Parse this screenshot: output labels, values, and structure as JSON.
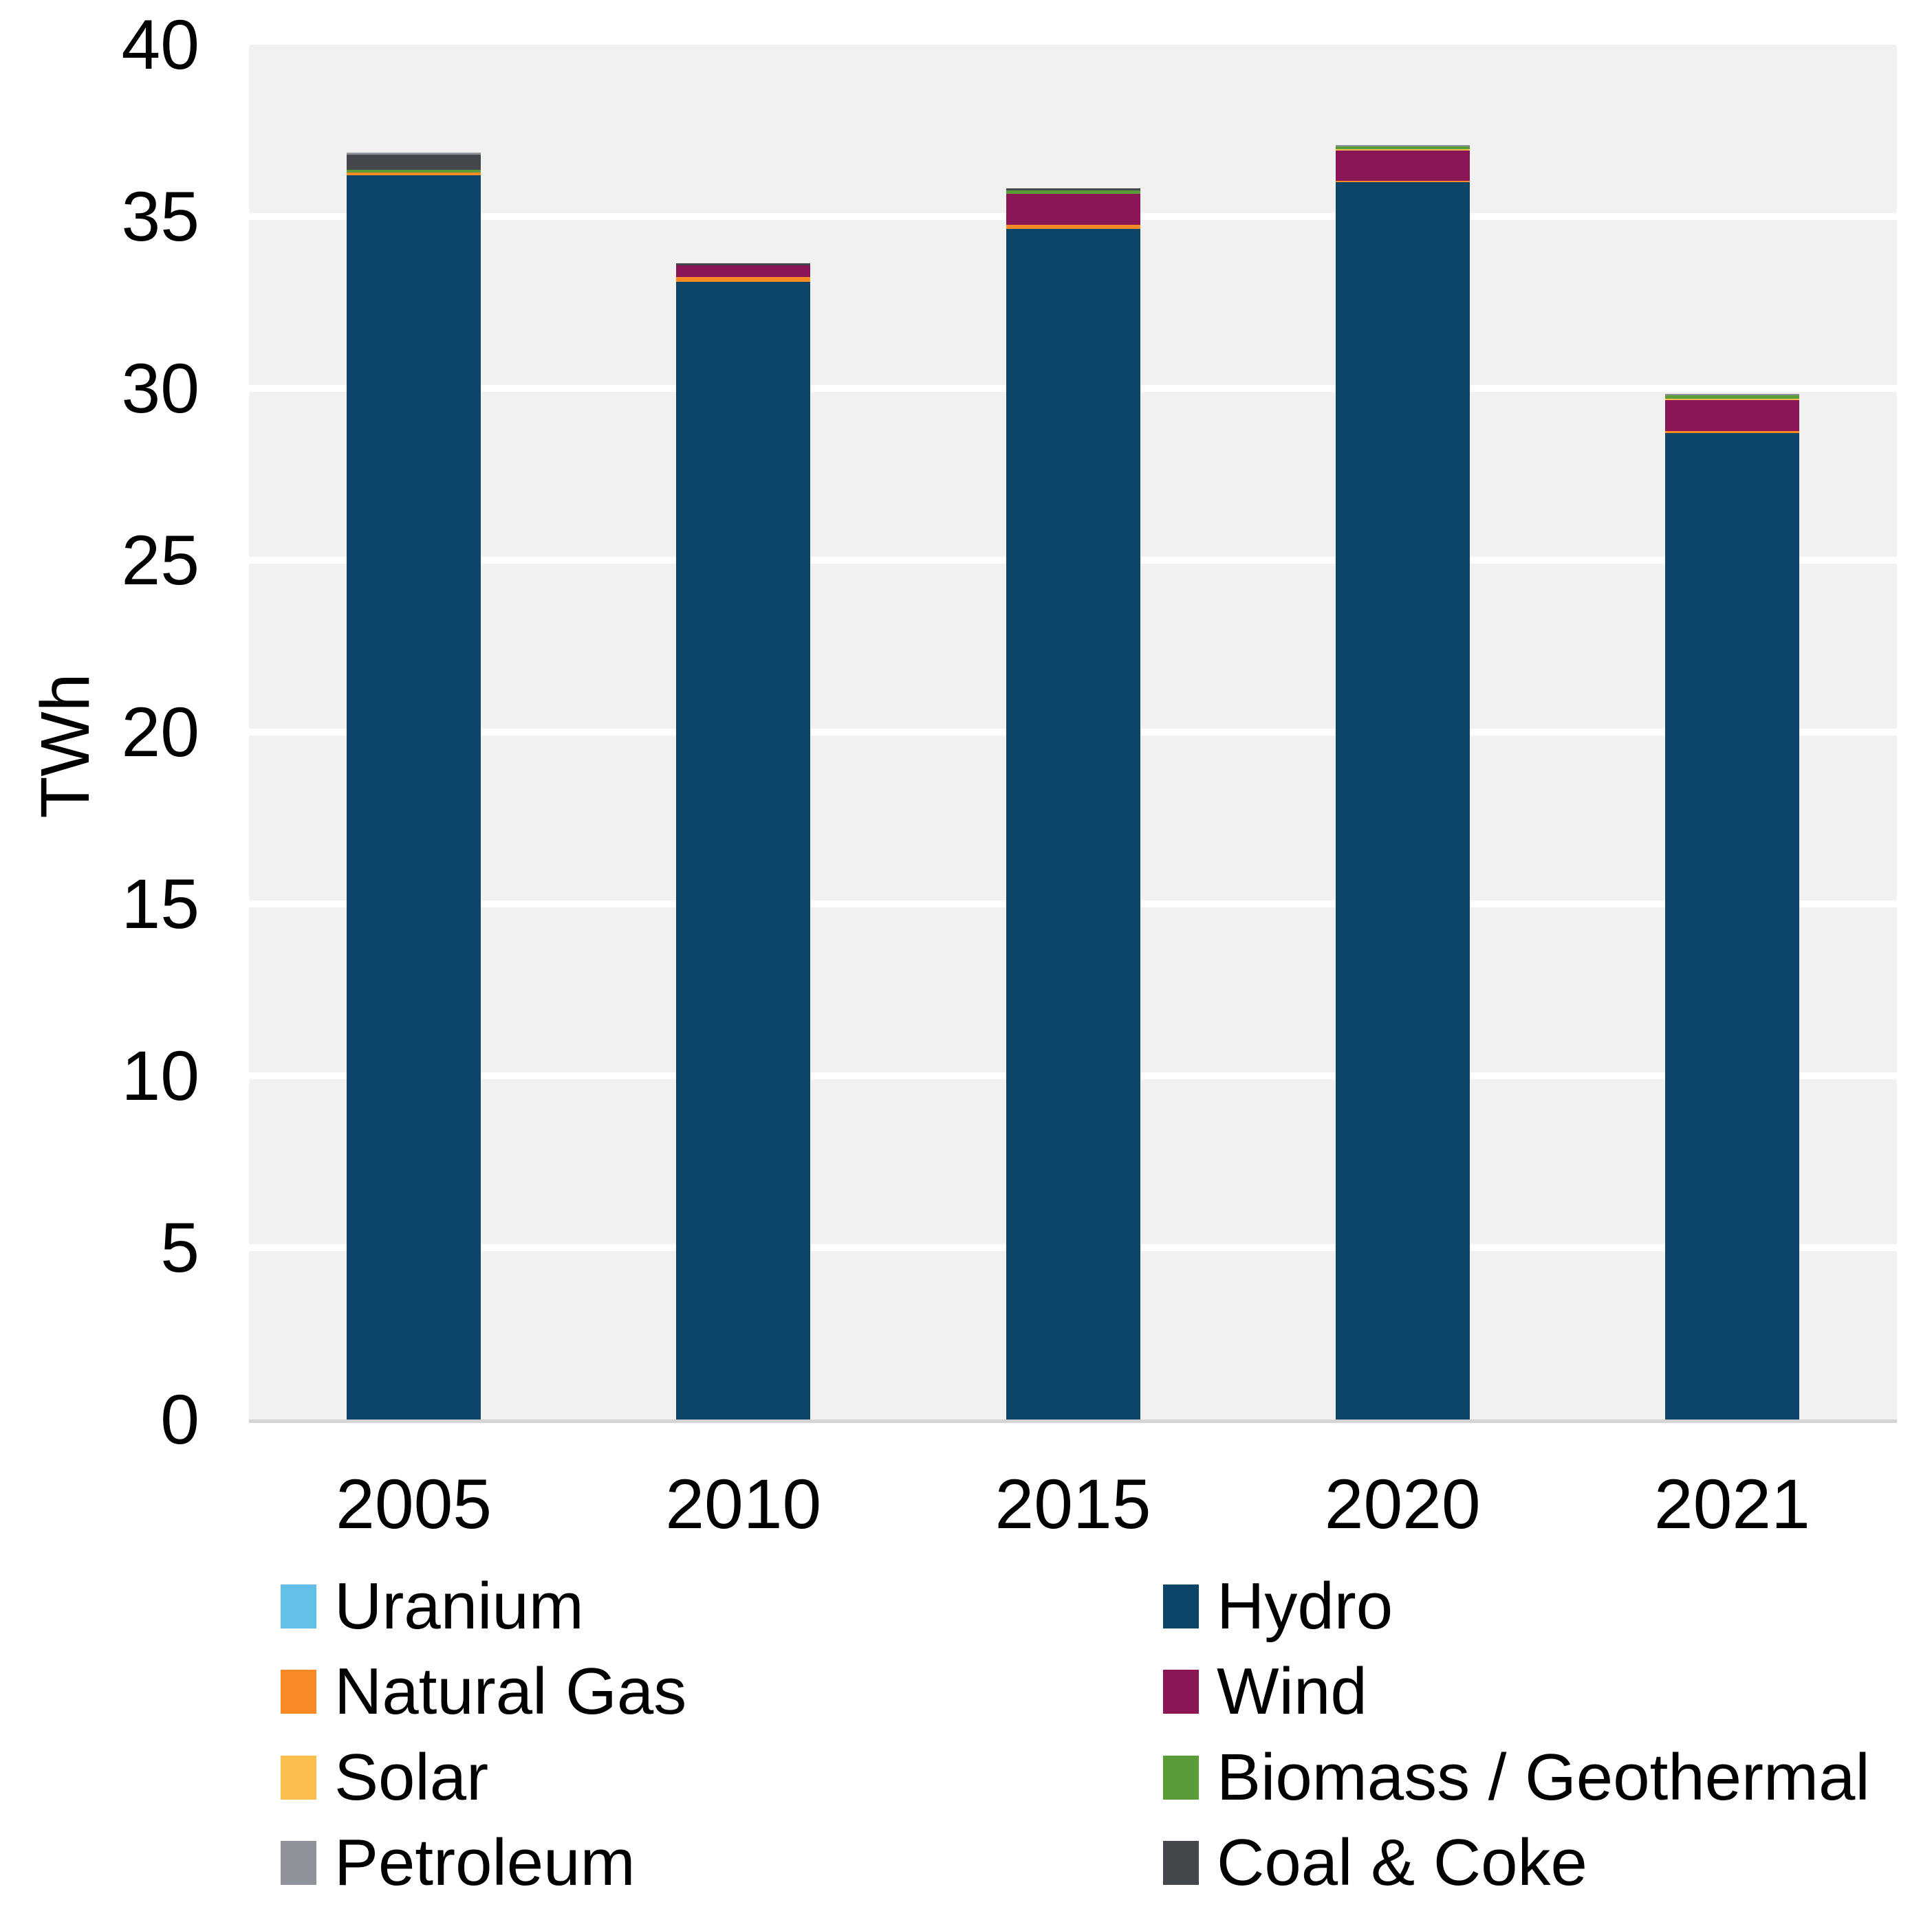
{
  "chart_data": {
    "type": "bar",
    "stacked": true,
    "title": "",
    "xlabel": "",
    "ylabel": "TWh",
    "ylim": [
      0,
      40
    ],
    "ytick_step": 5,
    "yticks": [
      0,
      5,
      10,
      15,
      20,
      25,
      30,
      35,
      40
    ],
    "grid": "horizontal",
    "categories": [
      "2005",
      "2010",
      "2015",
      "2020",
      "2021"
    ],
    "series": [
      {
        "name": "Uranium",
        "color": "#63BEE8",
        "values": [
          0,
          0,
          0,
          0,
          0
        ]
      },
      {
        "name": "Hydro",
        "color": "#0D4569",
        "values": [
          36.2,
          33.1,
          34.65,
          36.0,
          28.7
        ]
      },
      {
        "name": "Natural Gas",
        "color": "#F78A25",
        "values": [
          0.08,
          0.14,
          0.12,
          0.04,
          0.06
        ]
      },
      {
        "name": "Wind",
        "color": "#8A1656",
        "values": [
          0,
          0.34,
          0.9,
          0.89,
          0.91
        ]
      },
      {
        "name": "Solar",
        "color": "#FBBE4F",
        "values": [
          0,
          0,
          0,
          0.03,
          0.03
        ]
      },
      {
        "name": "Biomass / Geothermal",
        "color": "#5A9C38",
        "values": [
          0.08,
          0,
          0.1,
          0.09,
          0.1
        ]
      },
      {
        "name": "Coal & Coke",
        "color": "#43464B",
        "values": [
          0.45,
          0.06,
          0.05,
          0,
          0
        ]
      },
      {
        "name": "Petroleum",
        "color": "#90929B",
        "values": [
          0.05,
          0,
          0,
          0.03,
          0.04
        ]
      }
    ],
    "totals_twh_estimated": [
      36.9,
      33.6,
      35.8,
      37.1,
      29.9
    ],
    "legend_position": "bottom",
    "legend_columns": [
      [
        "Uranium",
        "Natural Gas",
        "Solar",
        "Petroleum"
      ],
      [
        "Hydro",
        "Wind",
        "Biomass / Geothermal",
        "Coal & Coke"
      ]
    ]
  },
  "colors": {
    "plot_background": "#F1F1F1",
    "gridline": "#FFFFFF",
    "axis_baseline": "#D4D4D4",
    "text": "#000000"
  }
}
